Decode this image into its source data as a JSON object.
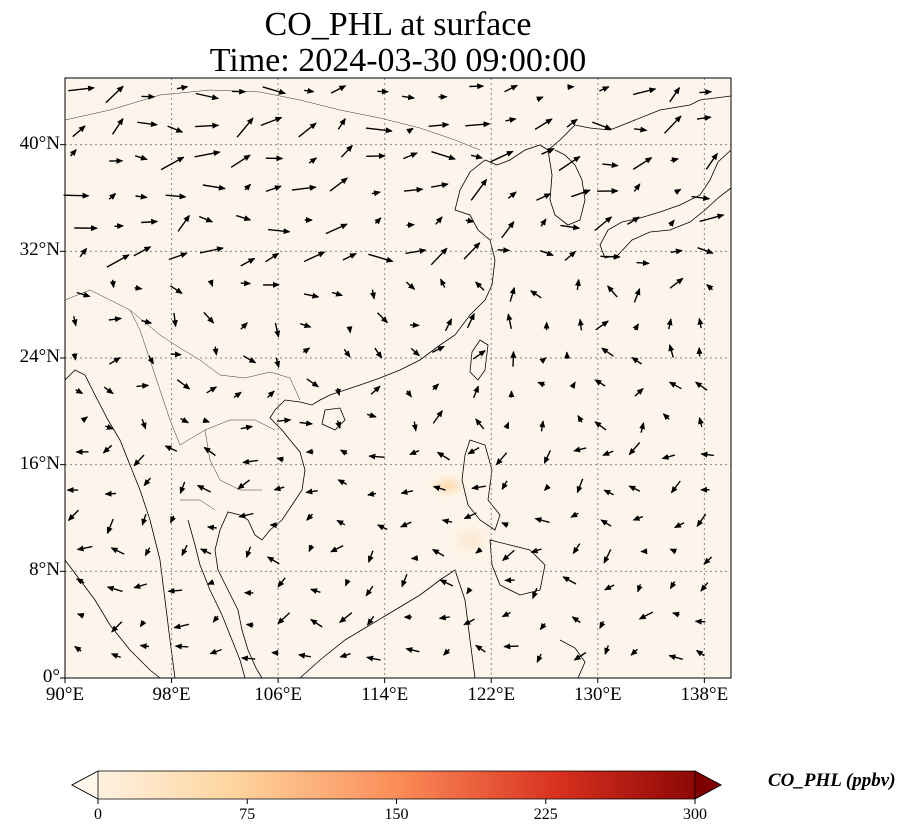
{
  "title": {
    "line1": "CO_PHL at surface",
    "line2": "Time: 2024-03-30 09:00:00"
  },
  "map": {
    "lon_range": [
      90,
      140
    ],
    "lat_range": [
      0,
      45
    ],
    "lat_ticks": [
      {
        "value": 0,
        "label": "0°"
      },
      {
        "value": 8,
        "label": "8°N"
      },
      {
        "value": 16,
        "label": "16°N"
      },
      {
        "value": 24,
        "label": "24°N"
      },
      {
        "value": 32,
        "label": "32°N"
      },
      {
        "value": 40,
        "label": "40°N"
      }
    ],
    "lon_ticks": [
      {
        "value": 90,
        "label": "90°E"
      },
      {
        "value": 98,
        "label": "98°E"
      },
      {
        "value": 106,
        "label": "106°E"
      },
      {
        "value": 114,
        "label": "114°E"
      },
      {
        "value": 122,
        "label": "122°E"
      },
      {
        "value": 130,
        "label": "130°E"
      },
      {
        "value": 138,
        "label": "138°E"
      }
    ],
    "gridlines": "dotted",
    "field_variable": "CO_PHL",
    "background_color": "#fdf5eb",
    "plume": {
      "center_lon": 118.5,
      "center_lat": 14.6,
      "peak_ppbv": 30
    }
  },
  "colorbar": {
    "label": "CO_PHL (ppbv)",
    "min": 0,
    "max": 300,
    "ticks": [
      "0",
      "75",
      "150",
      "225",
      "300"
    ],
    "colormap": "OrRd",
    "colors": [
      "#fff7ec",
      "#fdd49e",
      "#fc8d59",
      "#d7301f",
      "#7f0000"
    ]
  }
}
